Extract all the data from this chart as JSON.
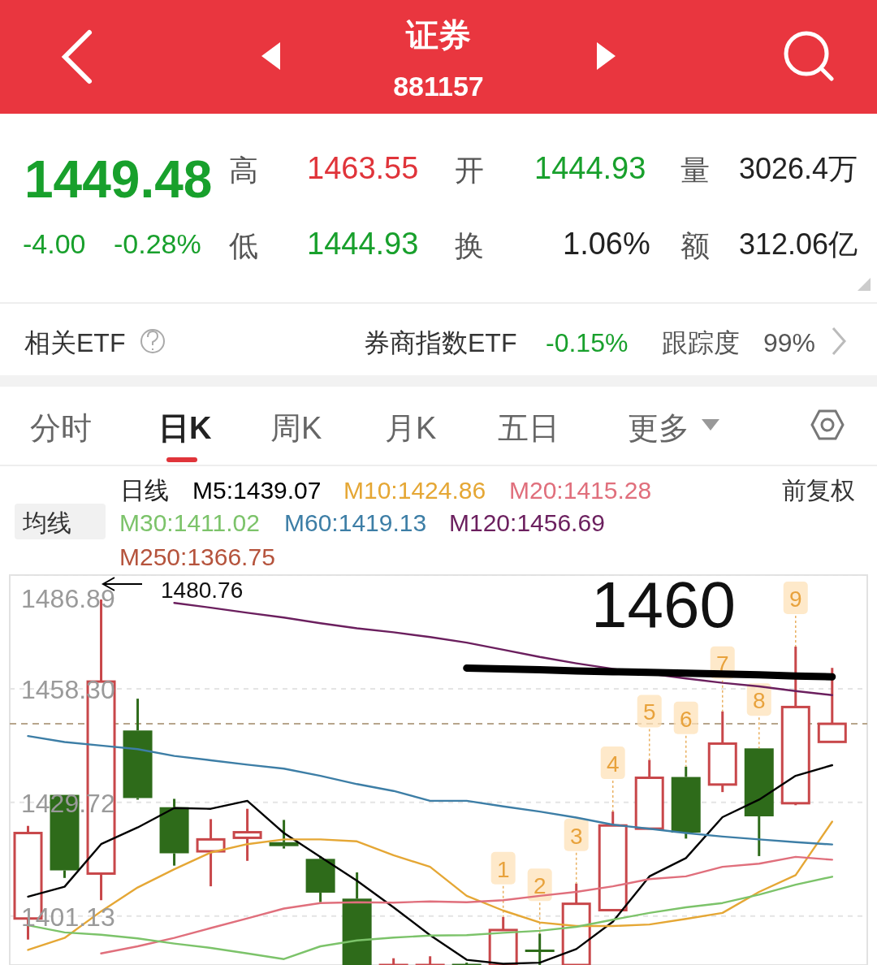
{
  "chart_data": {
    "type": "candlestick",
    "title": "证券",
    "subtitle": "881157",
    "categories": [
      null,
      null,
      null,
      null,
      null,
      null,
      null,
      null,
      null,
      null,
      null,
      null,
      null,
      null,
      null,
      null,
      null,
      null,
      null,
      null,
      null,
      null,
      null
    ],
    "ohlc": [
      [
        1400.5,
        1423.8,
        1395.2,
        1422.0
      ],
      [
        1431.6,
        1431.6,
        1410.7,
        1412.6
      ],
      [
        1411.8,
        1480.76,
        1405.1,
        1460.1
      ],
      [
        1447.8,
        1455.8,
        1430.4,
        1430.8
      ],
      [
        1428.5,
        1430.6,
        1413.8,
        1416.9
      ],
      [
        1417.4,
        1425.5,
        1408.6,
        1420.4
      ],
      [
        1420.8,
        1428.1,
        1415.0,
        1422.2
      ],
      [
        1419.7,
        1425.3,
        1418.1,
        1418.7
      ],
      [
        1415.5,
        1416.2,
        1404.6,
        1407.0
      ],
      [
        1405.5,
        1412.1,
        1388.8,
        1388.8
      ],
      [
        1388.8,
        1390.5,
        1388.8,
        1388.8
      ],
      [
        1388.8,
        1391.0,
        1388.8,
        1388.8
      ],
      [
        1388.8,
        1389.4,
        1388.8,
        1388.8
      ],
      [
        1388.8,
        1400.9,
        1388.8,
        1397.6
      ],
      [
        1392.4,
        1396.7,
        1388.8,
        1392.4
      ],
      [
        1388.8,
        1409.3,
        1388.8,
        1404.2
      ],
      [
        1402.6,
        1427.4,
        1402.6,
        1423.9
      ],
      [
        1423.1,
        1440.4,
        1423.1,
        1435.9
      ],
      [
        1436.1,
        1438.7,
        1420.6,
        1422.1
      ],
      [
        1434.2,
        1452.6,
        1432.3,
        1444.5
      ],
      [
        1443.3,
        1443.3,
        1416.2,
        1426.2
      ],
      [
        1429.5,
        1468.9,
        1429.0,
        1453.7
      ],
      [
        1444.93,
        1463.55,
        1444.93,
        1449.48
      ]
    ],
    "colors": [
      "#c8474a",
      "#2e6b1a",
      "#c8474a",
      "#2e6b1a",
      "#2e6b1a",
      "#c8474a",
      "#c8474a",
      "#2e6b1a",
      "#2e6b1a",
      "#2e6b1a",
      "#c8474a",
      "#c8474a",
      "#2e6b1a",
      "#c8474a",
      "#2e6b1a",
      "#c8474a",
      "#c8474a",
      "#c8474a",
      "#2e6b1a",
      "#c8474a",
      "#2e6b1a",
      "#c8474a",
      "#c8474a"
    ],
    "value_labels": [
      null,
      null,
      null,
      null,
      null,
      null,
      null,
      null,
      null,
      null,
      null,
      null,
      null,
      "1",
      "2",
      "3",
      "4",
      "5",
      "6",
      "7",
      "8",
      "9",
      null
    ],
    "series": [
      {
        "type": "line",
        "name": "M5:1439.07",
        "color": "#000000",
        "values": [
          1406.0,
          1408.5,
          1419.2,
          1423.4,
          1428.3,
          1428.1,
          1430.1,
          1422.0,
          1416.0,
          1410.0,
          1403.3,
          1396.3,
          1390.1,
          1389.1,
          1389.4,
          1392.8,
          1399.7,
          1411.1,
          1415.7,
          1426.0,
          1430.4,
          1436.4,
          1439.07
        ]
      },
      {
        "type": "line",
        "name": "M10:1424.86",
        "color": "#e5a735",
        "values": [
          1392.6,
          1395.6,
          1402.3,
          1408.3,
          1412.9,
          1417.1,
          1419.2,
          1420.4,
          1420.4,
          1419.9,
          1416.4,
          1413.5,
          1406.2,
          1402.5,
          1399.5,
          1398.6,
          1398.6,
          1399.0,
          1400.4,
          1401.9,
          1407.2,
          1411.4,
          1424.86
        ]
      },
      {
        "type": "line",
        "name": "M20:1415.28",
        "color": "#e06f7c",
        "values": [
          null,
          null,
          1391.7,
          1393.5,
          1395.6,
          1398.1,
          1400.5,
          1403.0,
          1404.4,
          1404.6,
          1404.5,
          1404.8,
          1404.6,
          1405.1,
          1406.2,
          1407.2,
          1408.6,
          1410.4,
          1411.1,
          1413.5,
          1414.3,
          1416.0,
          1415.28
        ]
      },
      {
        "type": "line",
        "name": "M30:1411.02",
        "color": "#7cc36a",
        "values": [
          1398.8,
          1397.0,
          1396.4,
          1395.5,
          1394.2,
          1393.1,
          1391.7,
          1390.3,
          1393.5,
          1395.0,
          1395.7,
          1396.2,
          1396.3,
          1396.9,
          1397.4,
          1398.4,
          1400.2,
          1401.9,
          1403.3,
          1404.4,
          1406.5,
          1409.0,
          1411.02
        ]
      },
      {
        "type": "line",
        "name": "M60:1419.13",
        "color": "#3d7ea6",
        "values": [
          1446.4,
          1444.9,
          1444.0,
          1443.1,
          1441.4,
          1440.3,
          1439.2,
          1438.2,
          1436.4,
          1434.3,
          1432.6,
          1430.1,
          1430.1,
          1428.7,
          1427.4,
          1425.9,
          1424.1,
          1423.1,
          1422.0,
          1421.1,
          1420.4,
          1419.7,
          1419.13
        ]
      },
      {
        "type": "line",
        "name": "M120:1456.69",
        "color": "#6b1f5e",
        "values": [
          null,
          null,
          null,
          null,
          1479.9,
          1478.7,
          1477.4,
          1476.2,
          1474.8,
          1473.5,
          1472.5,
          1471.3,
          1469.9,
          1468.1,
          1466.3,
          1464.7,
          1463.3,
          1462.1,
          1460.9,
          1459.8,
          1458.9,
          1457.7,
          1456.69
        ]
      },
      {
        "type": "line",
        "name": "M250:1366.75",
        "color": "#b5533c",
        "values": [
          null,
          null,
          null,
          null,
          null,
          null,
          null,
          null,
          null,
          null,
          null,
          null,
          null,
          null,
          null,
          null,
          null,
          null,
          null,
          null,
          null,
          null,
          null
        ]
      },
      {
        "type": "line",
        "color": "#000000",
        "values": [
          null,
          null,
          null,
          null,
          null,
          null,
          null,
          null,
          null,
          null,
          null,
          null,
          1463.5,
          1463.3,
          1463.1,
          1462.8,
          1462.6,
          1462.4,
          1462.2,
          1462.0,
          1461.8,
          1461.5,
          1461.3
        ]
      }
    ],
    "ylim": [
      1388.8,
      1486.89
    ],
    "yticks": [
      1486.89,
      {
        "value": 1458.3,
        "label": "1458.30"
      },
      1429.72,
      1401.13
    ],
    "grid": "y",
    "legend": "top",
    "ref_lines": [
      {
        "axis": "y",
        "value": 1449.48,
        "color": "#b7a58c",
        "line_style": "dashed"
      }
    ],
    "annotations": [
      "1449.48",
      "-4.00",
      "-0.28%",
      "高",
      "1463.55",
      "开",
      "1444.93",
      "量",
      "3026.4万",
      "低",
      "1444.93",
      "换",
      "1.06%",
      "额",
      "312.06亿",
      "相关ETF",
      "券商指数ETF",
      "-0.15%",
      "跟踪度",
      "99%",
      "分时",
      "日K",
      "周K",
      "月K",
      "五日",
      "更多",
      "日线",
      "均线",
      "前复权",
      "1460",
      "1480.76"
    ]
  }
}
